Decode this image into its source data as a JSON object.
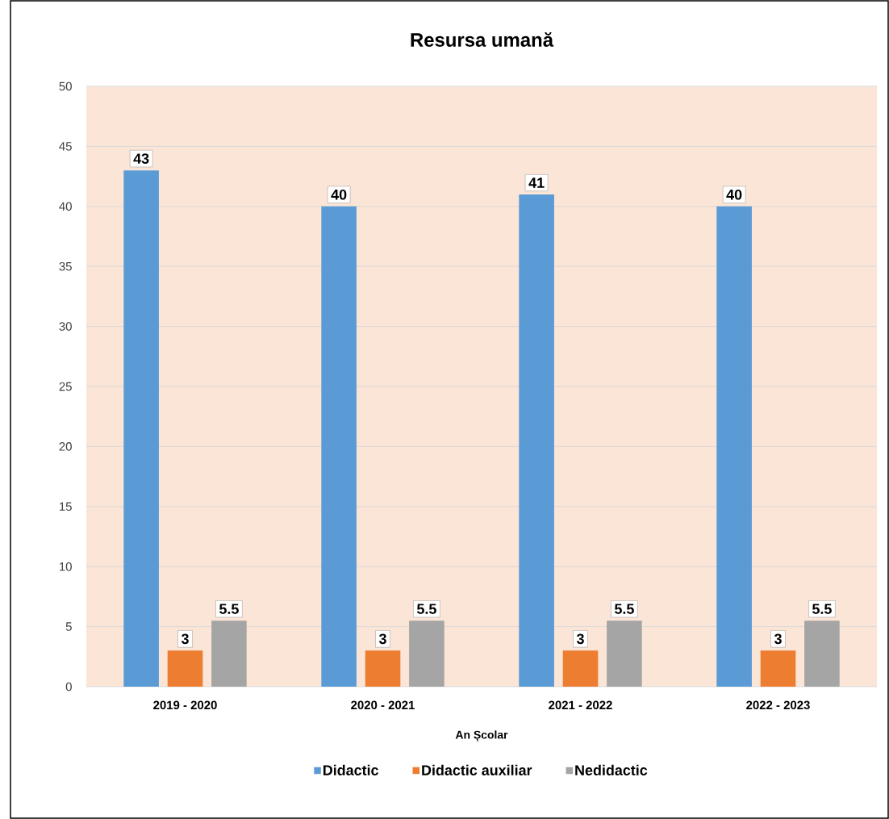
{
  "chart_data": {
    "type": "bar",
    "title": "Resursa umană",
    "xlabel": "An Școlar",
    "categories": [
      "2019 - 2020",
      "2020 - 2021",
      "2021 - 2022",
      "2022 - 2023"
    ],
    "series": [
      {
        "name": "Didactic",
        "color": "#5b9bd5",
        "values": [
          43,
          40,
          41,
          40
        ]
      },
      {
        "name": "Didactic auxiliar",
        "color": "#ed7d31",
        "values": [
          3,
          3,
          3,
          3
        ]
      },
      {
        "name": "Nedidactic",
        "color": "#a5a5a5",
        "values": [
          5.5,
          5.5,
          5.5,
          5.5
        ]
      }
    ],
    "ylim": [
      0,
      50
    ],
    "yticks": [
      0,
      5,
      10,
      15,
      20,
      25,
      30,
      35,
      40,
      45,
      50
    ],
    "grid": "y",
    "legend": "bottom",
    "data_labels": true
  }
}
